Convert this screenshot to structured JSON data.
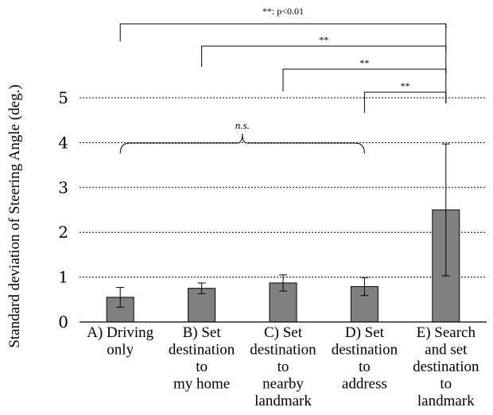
{
  "chart_data": {
    "type": "bar",
    "ylabel": "Standard deviation of Steering Angle (deg.)",
    "ylim": [
      0,
      5
    ],
    "yticks": [
      "0",
      "1",
      "2",
      "3",
      "4",
      "5"
    ],
    "grid": true,
    "categories": [
      [
        "A) Driving",
        "only"
      ],
      [
        "B) Set",
        "destination",
        "to",
        "my home"
      ],
      [
        "C) Set",
        "destination",
        "to",
        "nearby",
        "landmark"
      ],
      [
        "D) Set",
        "destination",
        "to",
        "address"
      ],
      [
        "E) Search",
        "and set",
        "destination",
        "to",
        "landmark"
      ]
    ],
    "values": [
      0.55,
      0.75,
      0.87,
      0.79,
      2.5
    ],
    "error": [
      0.22,
      0.12,
      0.18,
      0.2,
      1.47
    ],
    "bar_color": "#808080",
    "significance": {
      "legend_text": "**: p<0.01",
      "brackets": [
        {
          "from": 0,
          "to": 4,
          "label": "**"
        },
        {
          "from": 1,
          "to": 4,
          "label": "**"
        },
        {
          "from": 2,
          "to": 4,
          "label": "**"
        },
        {
          "from": 3,
          "to": 4,
          "label": "**"
        }
      ],
      "ns": {
        "from": 0,
        "to": 3,
        "label": "n.s."
      }
    }
  }
}
